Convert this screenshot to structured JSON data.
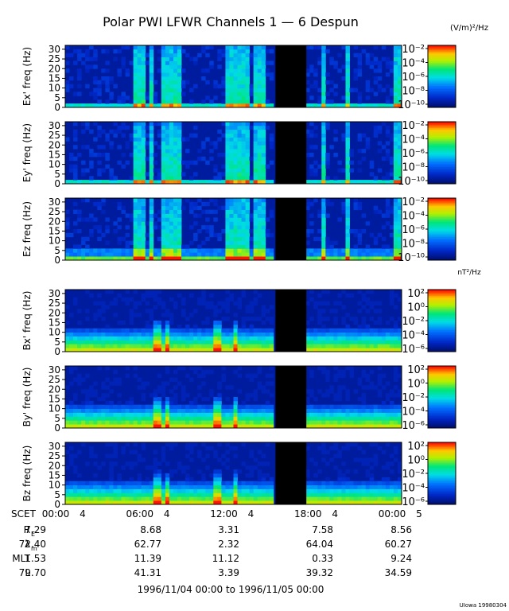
{
  "title": "Polar PWI LFWR Channels 1 — 6 Despun",
  "footer_date_range": "1996/11/04 00:00 to 1996/11/05 00:00",
  "footer_credit": "UIowa 19980304",
  "colorbar_units": {
    "electric": "(V/m)²/Hz",
    "magnetic": "nT²/Hz"
  },
  "chart_data": [
    {
      "type": "heatmap",
      "ylabel": "Ex' freq (Hz)",
      "y_ticks": [
        "0",
        "5",
        "10",
        "15",
        "20",
        "25",
        "30"
      ],
      "ylim": [
        0,
        32
      ],
      "colorbar_ticks": [
        "10⁻²",
        "10⁻⁴",
        "10⁻⁶",
        "10⁻⁸",
        "10⁻¹⁰"
      ],
      "colorbar_range_exponent": [
        -10,
        -2
      ],
      "data_gap_hours": [
        15.0,
        17.2
      ]
    },
    {
      "type": "heatmap",
      "ylabel": "Ey' freq (Hz)",
      "y_ticks": [
        "0",
        "5",
        "10",
        "15",
        "20",
        "25",
        "30"
      ],
      "ylim": [
        0,
        32
      ],
      "colorbar_ticks": [
        "10⁻²",
        "10⁻⁴",
        "10⁻⁶",
        "10⁻⁸",
        "10⁻¹⁰"
      ],
      "colorbar_range_exponent": [
        -10,
        -2
      ],
      "data_gap_hours": [
        15.0,
        17.2
      ]
    },
    {
      "type": "heatmap",
      "ylabel": "Ez freq (Hz)",
      "y_ticks": [
        "0",
        "5",
        "10",
        "15",
        "20",
        "25",
        "30"
      ],
      "ylim": [
        0,
        32
      ],
      "colorbar_ticks": [
        "10⁻²",
        "10⁻⁴",
        "10⁻⁶",
        "10⁻⁸",
        "10⁻¹⁰"
      ],
      "colorbar_range_exponent": [
        -10,
        -2
      ],
      "data_gap_hours": [
        15.0,
        17.2
      ]
    },
    {
      "type": "heatmap",
      "ylabel": "Bx' freq (Hz)",
      "y_ticks": [
        "0",
        "5",
        "10",
        "15",
        "20",
        "25",
        "30"
      ],
      "ylim": [
        0,
        32
      ],
      "colorbar_ticks": [
        "10²",
        "10⁰",
        "10⁻²",
        "10⁻⁴",
        "10⁻⁶"
      ],
      "colorbar_range_exponent": [
        -7,
        2
      ],
      "data_gap_hours": [
        15.0,
        17.2
      ]
    },
    {
      "type": "heatmap",
      "ylabel": "By' freq (Hz)",
      "y_ticks": [
        "0",
        "5",
        "10",
        "15",
        "20",
        "25",
        "30"
      ],
      "ylim": [
        0,
        32
      ],
      "colorbar_ticks": [
        "10²",
        "10⁰",
        "10⁻²",
        "10⁻⁴",
        "10⁻⁶"
      ],
      "colorbar_range_exponent": [
        -7,
        2
      ],
      "data_gap_hours": [
        15.0,
        17.2
      ]
    },
    {
      "type": "heatmap",
      "ylabel": "Bz freq (Hz)",
      "y_ticks": [
        "0",
        "5",
        "10",
        "15",
        "20",
        "25",
        "30"
      ],
      "ylim": [
        0,
        32
      ],
      "colorbar_ticks": [
        "10²",
        "10⁰",
        "10⁻²",
        "10⁻⁴",
        "10⁻⁶"
      ],
      "colorbar_range_exponent": [
        -7,
        2
      ],
      "data_gap_hours": [
        15.0,
        17.2
      ]
    }
  ],
  "x_axis": {
    "row_label": "SCET",
    "ticks": [
      "00:00",
      "06:00",
      "12:00",
      "18:00",
      "00:00"
    ],
    "tick_hours": [
      0,
      6,
      12,
      18,
      24
    ],
    "day_labels": [
      "4",
      "4",
      "4",
      "4",
      "5"
    ]
  },
  "ephemeris": [
    {
      "label": "R",
      "sub": "E",
      "values": [
        "7.29",
        "8.68",
        "3.31",
        "7.58",
        "8.56"
      ]
    },
    {
      "label": "λ",
      "sub": "m",
      "values": [
        "72.40",
        "62.77",
        "2.32",
        "64.04",
        "60.27"
      ]
    },
    {
      "label": "MLT",
      "sub": "",
      "values": [
        "1.53",
        "11.39",
        "11.12",
        "0.33",
        "9.24"
      ]
    },
    {
      "label": "L",
      "sub": "",
      "values": [
        "79.70",
        "41.31",
        "3.39",
        "39.32",
        "34.59"
      ]
    }
  ],
  "colors": {
    "background": "#ffffff",
    "gap": "#000000",
    "spectrum_low": "#00147a",
    "spectrum_high": "#ff0000"
  }
}
